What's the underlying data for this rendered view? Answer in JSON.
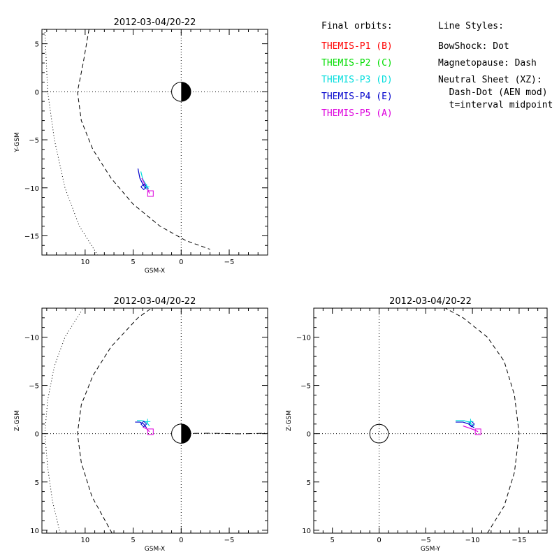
{
  "legend": {
    "orbits_title": "Final orbits:",
    "probes": [
      {
        "label": "THEMIS-P1 (B)",
        "color": "#ff0000"
      },
      {
        "label": "THEMIS-P2 (C)",
        "color": "#00dd00"
      },
      {
        "label": "THEMIS-P3 (D)",
        "color": "#00dddd"
      },
      {
        "label": "THEMIS-P4 (E)",
        "color": "#0000cc"
      },
      {
        "label": "THEMIS-P5 (A)",
        "color": "#dd00dd"
      }
    ],
    "styles_title": "Line Styles:",
    "styles": [
      "BowShock: Dot",
      "Magnetopause: Dash",
      "Neutral Sheet (XZ):",
      "  Dash-Dot (AEN mod)",
      "  t=interval midpoint"
    ]
  },
  "chart_data": [
    {
      "type": "line",
      "title": "2012-03-04/20-22",
      "xlabel": "GSM-X",
      "ylabel": "Y-GSM",
      "xlim": [
        14.5,
        -9
      ],
      "ylim": [
        6.5,
        -17
      ],
      "xticks": [
        10,
        5,
        0,
        -5
      ],
      "yticks": [
        5,
        0,
        -5,
        -10,
        -15
      ],
      "zero_lines": true,
      "earth": "half-filled",
      "series": [
        {
          "kind": "bowshock",
          "style": "dot",
          "x": [
            14.2,
            13.9,
            13.2,
            12.1,
            10.6,
            8.7
          ],
          "y": [
            6.5,
            0,
            -5,
            -10,
            -14,
            -17
          ]
        },
        {
          "kind": "magnetopause",
          "style": "dash",
          "x": [
            9.6,
            10.2,
            10.8,
            10.4,
            9.2,
            7.3,
            5.0,
            2.2,
            -0.5,
            -3.0
          ],
          "y": [
            6.5,
            3.0,
            0,
            -3.0,
            -6.0,
            -9.0,
            -11.7,
            -14.0,
            -15.5,
            -16.4
          ]
        },
        {
          "kind": "orbit",
          "color": "#0000cc",
          "x": [
            4.5,
            4.3,
            4.0,
            3.7
          ],
          "y": [
            -8.0,
            -9.0,
            -9.6,
            -10.1
          ]
        },
        {
          "kind": "orbit",
          "color": "#00dddd",
          "x": [
            4.2,
            4.0,
            3.7,
            3.4
          ],
          "y": [
            -8.3,
            -9.1,
            -9.6,
            -10.1
          ]
        },
        {
          "kind": "orbit",
          "color": "#dd00dd",
          "x": [
            4.1,
            3.8,
            3.5,
            3.3
          ],
          "y": [
            -9.0,
            -9.6,
            -10.1,
            -10.6
          ]
        }
      ],
      "markers": [
        {
          "symbol": "diamond",
          "color": "#0000cc",
          "x": 3.9,
          "y": -9.9
        },
        {
          "symbol": "plus",
          "color": "#00dddd",
          "x": 3.6,
          "y": -9.9
        },
        {
          "symbol": "square",
          "color": "#dd00dd",
          "x": 3.2,
          "y": -10.6
        }
      ]
    },
    {
      "type": "line",
      "title": "2012-03-04/20-22",
      "xlabel": "GSM-X",
      "ylabel": "Z-GSM",
      "xlim": [
        14.5,
        -9
      ],
      "ylim": [
        -13,
        10.3
      ],
      "xticks": [
        10,
        5,
        0,
        -5
      ],
      "yticks": [
        10,
        5,
        0,
        -5,
        -10
      ],
      "zero_lines": true,
      "earth": "half-filled",
      "series": [
        {
          "kind": "bowshock",
          "style": "dot",
          "x": [
            12.6,
            13.4,
            13.9,
            14.2,
            13.9,
            13.2,
            12.1,
            10.2
          ],
          "y": [
            10.3,
            7.0,
            3.5,
            0,
            -3.5,
            -7.0,
            -10.0,
            -13.0
          ]
        },
        {
          "kind": "magnetopause",
          "style": "dash",
          "x": [
            7.2,
            9.3,
            10.4,
            10.8,
            10.4,
            9.2,
            7.3,
            4.5,
            3.1
          ],
          "y": [
            10.3,
            6.5,
            3.0,
            0,
            -3.0,
            -6.0,
            -9.0,
            -12.0,
            -13.0
          ]
        },
        {
          "kind": "neutral_sheet",
          "style": "dash-dot",
          "x": [
            0.9,
            -3,
            -6,
            -9
          ],
          "y": [
            0,
            -0.05,
            0.02,
            -0.05
          ]
        },
        {
          "kind": "orbit",
          "color": "#0000cc",
          "x": [
            4.8,
            4.3,
            3.9,
            3.6
          ],
          "y": [
            -1.2,
            -1.2,
            -1.0,
            -0.6
          ]
        },
        {
          "kind": "orbit",
          "color": "#00dddd",
          "x": [
            4.6,
            4.1,
            3.6,
            3.3
          ],
          "y": [
            -1.35,
            -1.35,
            -1.2,
            -0.8
          ]
        },
        {
          "kind": "orbit",
          "color": "#dd00dd",
          "x": [
            4.0,
            3.6,
            3.3
          ],
          "y": [
            -0.7,
            -0.5,
            -0.2
          ]
        }
      ],
      "markers": [
        {
          "symbol": "diamond",
          "color": "#0000cc",
          "x": 3.9,
          "y": -1.0
        },
        {
          "symbol": "plus",
          "color": "#00dddd",
          "x": 3.5,
          "y": -1.25
        },
        {
          "symbol": "square",
          "color": "#dd00dd",
          "x": 3.2,
          "y": -0.2
        }
      ]
    },
    {
      "type": "line",
      "title": "2012-03-04/20-22",
      "xlabel": "GSM-Y",
      "ylabel": "Z-GSM",
      "xlim": [
        7,
        -18
      ],
      "ylim": [
        -13,
        10.3
      ],
      "xticks": [
        5,
        0,
        -5,
        -10,
        -15
      ],
      "yticks": [
        10,
        5,
        0,
        -5,
        -10
      ],
      "zero_lines": true,
      "earth": "outline",
      "series": [
        {
          "kind": "magnetopause",
          "style": "dash",
          "x": [
            -11.6,
            -13.4,
            -14.5,
            -15.0,
            -14.5,
            -13.4,
            -11.6,
            -9.0,
            -7.1
          ],
          "y": [
            10.3,
            7.5,
            4.0,
            0,
            -4.0,
            -7.5,
            -10.0,
            -12.0,
            -13.0
          ]
        },
        {
          "kind": "orbit",
          "color": "#0000cc",
          "x": [
            -8.2,
            -9.0,
            -9.6,
            -10.2
          ],
          "y": [
            -1.2,
            -1.2,
            -1.0,
            -0.6
          ]
        },
        {
          "kind": "orbit",
          "color": "#00dddd",
          "x": [
            -8.2,
            -9.1,
            -9.6,
            -10.2
          ],
          "y": [
            -1.35,
            -1.35,
            -1.2,
            -0.8
          ]
        },
        {
          "kind": "orbit",
          "color": "#dd00dd",
          "x": [
            -9.0,
            -9.6,
            -10.2,
            -10.6
          ],
          "y": [
            -0.8,
            -0.6,
            -0.4,
            -0.2
          ]
        }
      ],
      "markers": [
        {
          "symbol": "diamond",
          "color": "#0000cc",
          "x": -9.9,
          "y": -1.0
        },
        {
          "symbol": "plus",
          "color": "#00dddd",
          "x": -9.8,
          "y": -1.25
        },
        {
          "symbol": "square",
          "color": "#dd00dd",
          "x": -10.6,
          "y": -0.2
        }
      ]
    }
  ]
}
